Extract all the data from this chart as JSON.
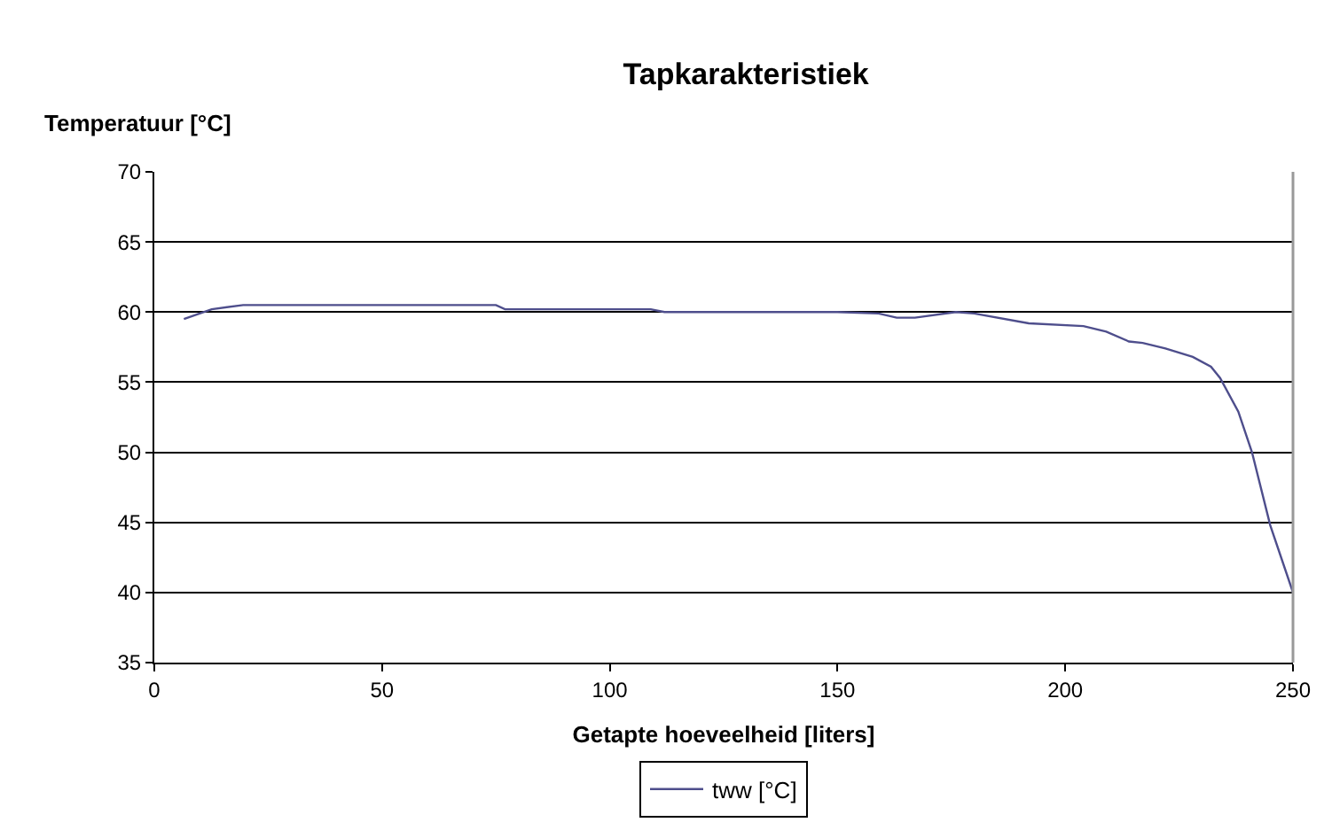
{
  "chart_data": {
    "type": "line",
    "title": "Tapkarakteristiek",
    "xlabel": "Getapte hoeveelheid [liters]",
    "ylabel": "Temperatuur [°C]",
    "x": [
      6.5,
      12.6,
      19.5,
      40,
      60,
      75,
      77,
      90,
      109,
      112,
      130,
      150,
      159,
      163,
      167,
      176,
      180,
      192,
      204,
      209,
      214,
      217,
      222,
      228,
      232,
      234,
      238,
      241,
      245,
      250
    ],
    "series": [
      {
        "name": "tww [°C]",
        "color": "#4e4e8c",
        "values": [
          59.5,
          60.2,
          60.5,
          60.5,
          60.5,
          60.5,
          60.2,
          60.2,
          60.2,
          60.0,
          60.0,
          60.0,
          59.9,
          59.6,
          59.6,
          60.0,
          59.9,
          59.2,
          59.0,
          58.6,
          57.9,
          57.8,
          57.4,
          56.8,
          56.1,
          55.3,
          52.9,
          50.0,
          44.8,
          40.0
        ]
      }
    ],
    "xlim": [
      0,
      250
    ],
    "xticks": [
      0,
      50,
      100,
      150,
      200,
      250
    ],
    "ylim": [
      35,
      70
    ],
    "yticks": [
      35,
      40,
      45,
      50,
      55,
      60,
      65,
      70
    ],
    "grid": "y",
    "legend": "bottom",
    "marker": "none",
    "line_style": "solid"
  }
}
